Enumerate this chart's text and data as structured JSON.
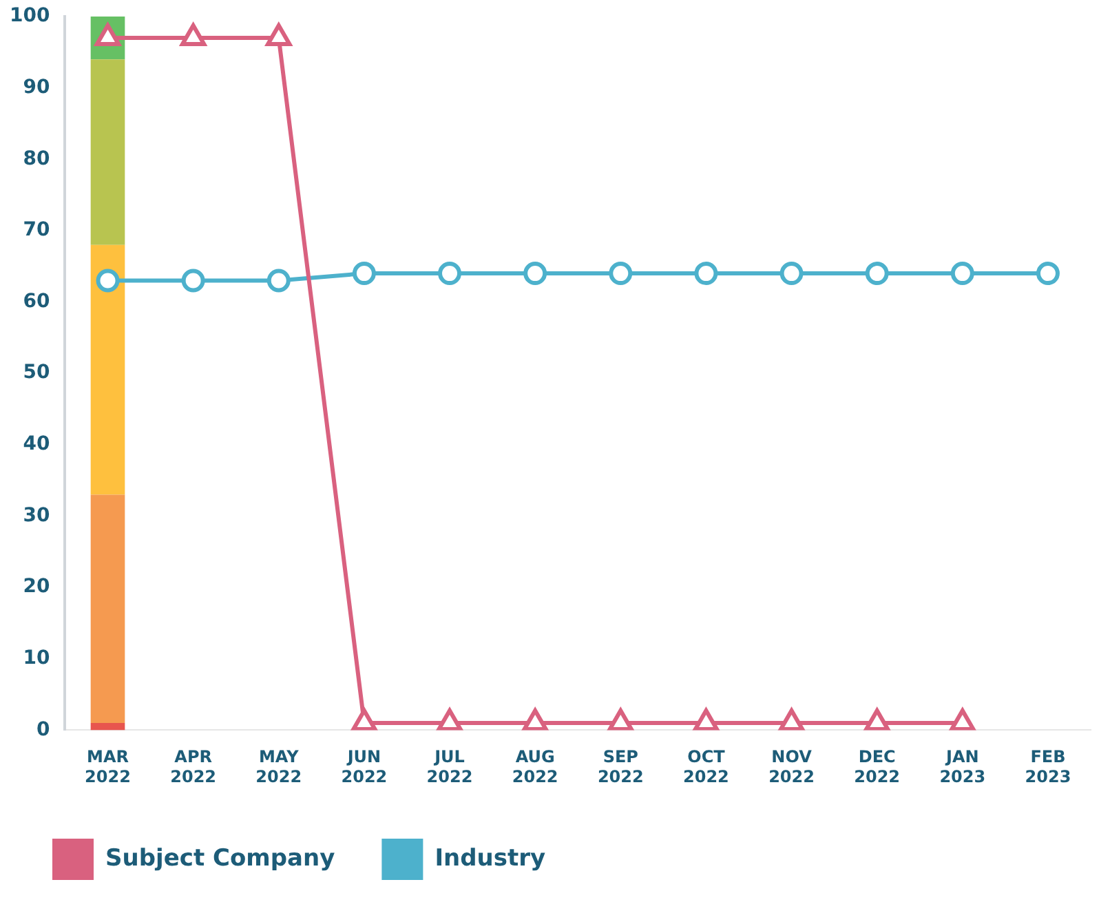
{
  "chart_data": {
    "type": "line",
    "categories": [
      "MAR 2022",
      "APR 2022",
      "MAY 2022",
      "JUN 2022",
      "JUL 2022",
      "AUG 2022",
      "SEP 2022",
      "OCT 2022",
      "NOV 2022",
      "DEC 2022",
      "JAN 2023",
      "FEB 2023"
    ],
    "ylim": [
      0,
      100
    ],
    "yticks": [
      0,
      10,
      20,
      30,
      40,
      50,
      60,
      70,
      80,
      90,
      100
    ],
    "grid": false,
    "legend": "bottom left",
    "stacked": true,
    "series": [
      {
        "type": "bar",
        "color": "#e8554e",
        "values": [
          1,
          null,
          null,
          null,
          null,
          null,
          null,
          null,
          null,
          null,
          null,
          null
        ]
      },
      {
        "type": "bar",
        "color": "#f59a50",
        "values": [
          32,
          null,
          null,
          null,
          null,
          null,
          null,
          null,
          null,
          null,
          null,
          null
        ]
      },
      {
        "type": "bar",
        "color": "#fec03e",
        "values": [
          35,
          null,
          null,
          null,
          null,
          null,
          null,
          null,
          null,
          null,
          null,
          null
        ]
      },
      {
        "type": "bar",
        "color": "#b8c450",
        "values": [
          26,
          null,
          null,
          null,
          null,
          null,
          null,
          null,
          null,
          null,
          null,
          null
        ]
      },
      {
        "type": "bar",
        "color": "#66c064",
        "values": [
          6,
          null,
          null,
          null,
          null,
          null,
          null,
          null,
          null,
          null,
          null,
          null
        ]
      },
      {
        "name": "Subject Company",
        "color": "#d9617f",
        "marker": "triangle",
        "values": [
          97,
          97,
          97,
          1,
          1,
          1,
          1,
          1,
          1,
          1,
          1,
          null
        ]
      },
      {
        "name": "Industry",
        "color": "#4db1cc",
        "marker": "circle",
        "values": [
          63,
          63,
          63,
          64,
          64,
          64,
          64,
          64,
          64,
          64,
          64,
          64
        ]
      }
    ]
  }
}
